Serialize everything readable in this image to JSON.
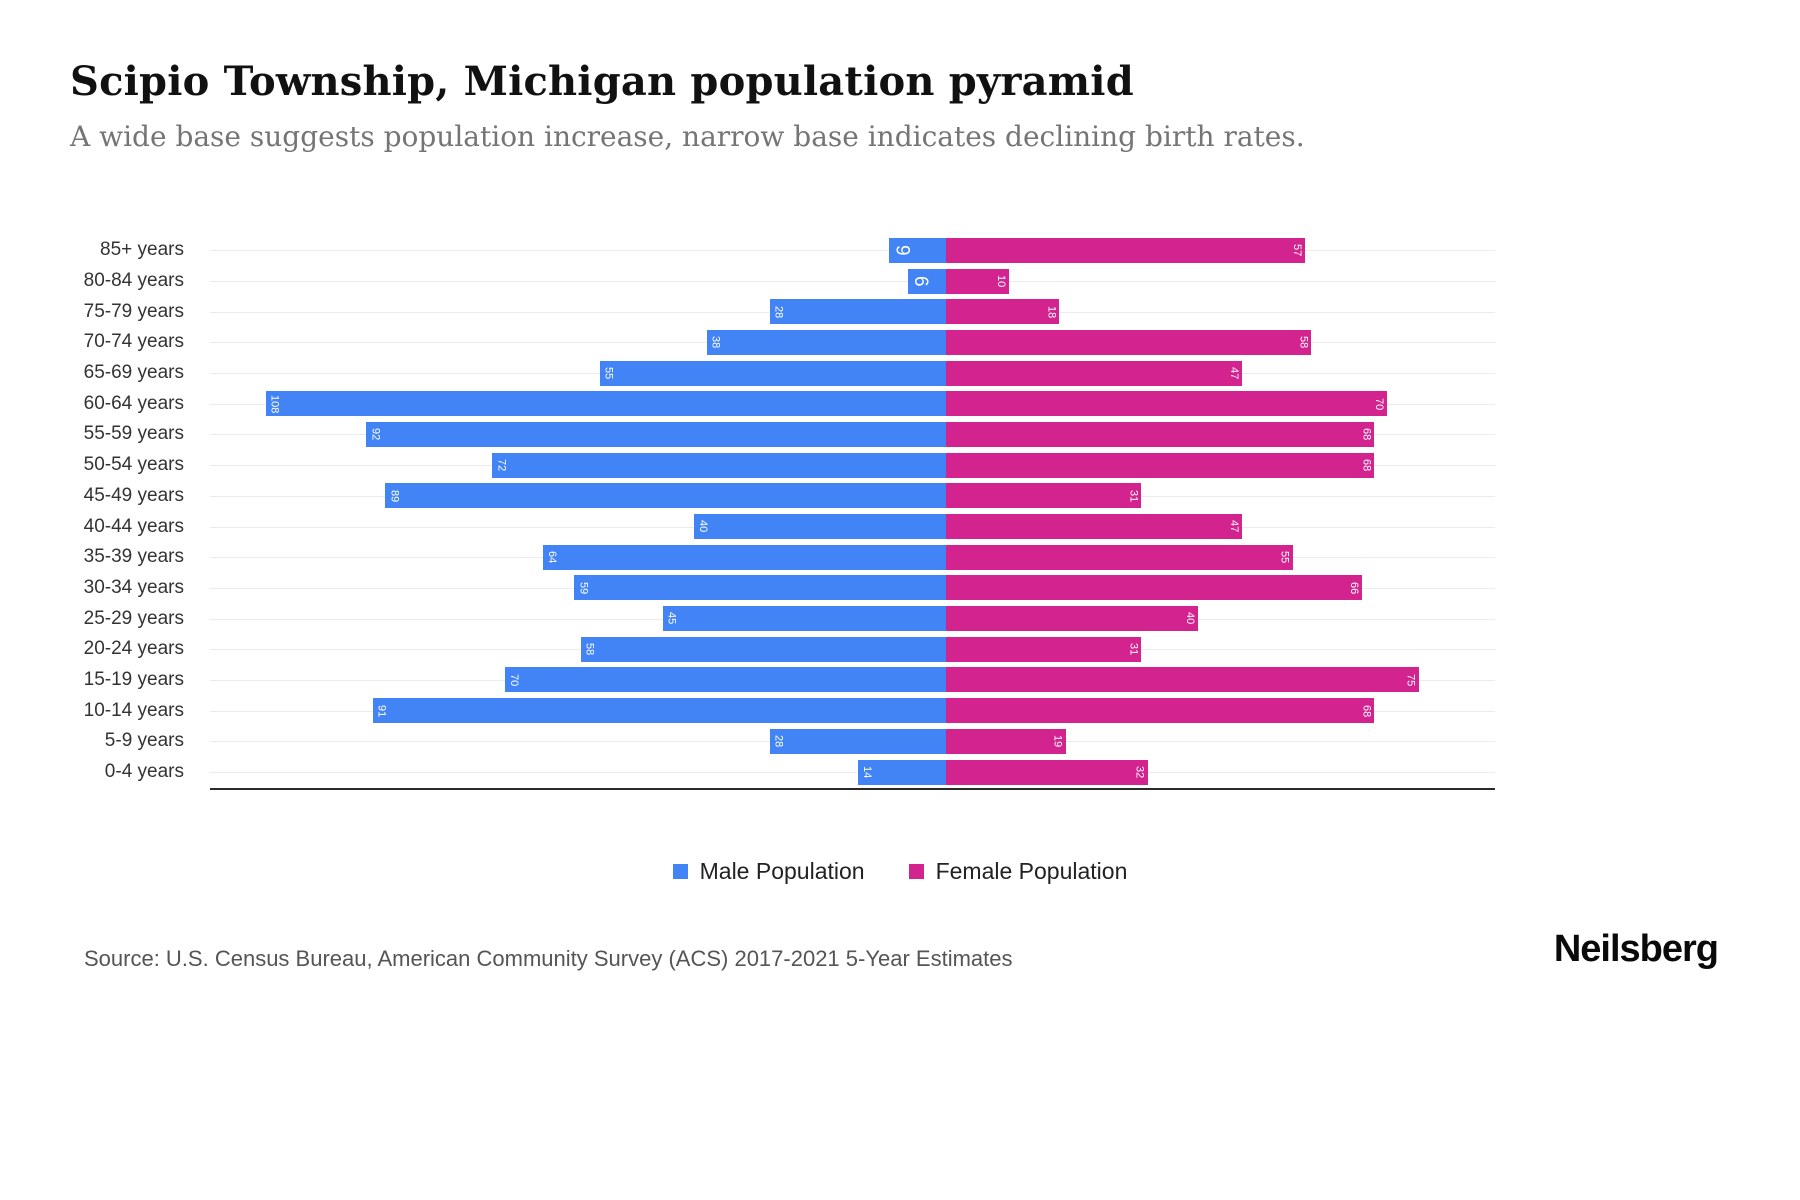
{
  "header": {
    "title": "Scipio Township, Michigan population pyramid",
    "subtitle": "A wide base suggests population increase, narrow base indicates declining birth rates."
  },
  "legend": {
    "male_label": "Male Population",
    "female_label": "Female Population"
  },
  "footer": {
    "source": "Source: U.S. Census Bureau, American Community Survey (ACS) 2017-2021 5-Year Estimates",
    "brand": "Neilsberg"
  },
  "colors": {
    "male": "#4284F5",
    "female": "#D2238F"
  },
  "chart_data": {
    "type": "bar",
    "orientation": "horizontal population pyramid (male left, female right)",
    "categories": [
      "85+ years",
      "80-84 years",
      "75-79 years",
      "70-74 years",
      "65-69 years",
      "60-64 years",
      "55-59 years",
      "50-54 years",
      "45-49 years",
      "40-44 years",
      "35-39 years",
      "30-34 years",
      "25-29 years",
      "20-24 years",
      "15-19 years",
      "10-14 years",
      "5-9 years",
      "0-4 years"
    ],
    "series": [
      {
        "name": "Male Population",
        "values": [
          9,
          6,
          28,
          38,
          55,
          108,
          92,
          72,
          89,
          40,
          64,
          59,
          45,
          58,
          70,
          91,
          28,
          14
        ]
      },
      {
        "name": "Female Population",
        "values": [
          57,
          10,
          18,
          58,
          47,
          70,
          68,
          68,
          31,
          47,
          55,
          66,
          40,
          31,
          75,
          68,
          19,
          32
        ]
      }
    ],
    "value_labels": "shown rotated 90deg inside bar ends",
    "max_male_value": 108,
    "max_female_value": 75,
    "grid": "light horizontal gridlines per row",
    "legend_position": "bottom center"
  }
}
